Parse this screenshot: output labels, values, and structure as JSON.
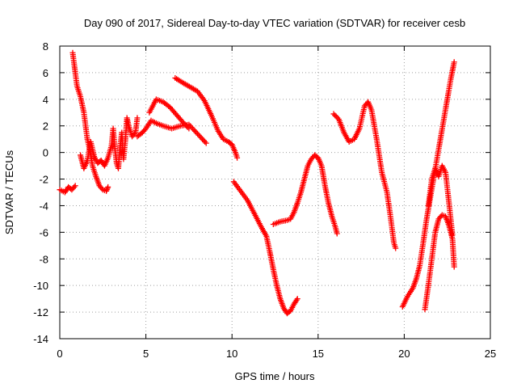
{
  "chart_data": {
    "type": "scatter",
    "title": "Day 090 of 2017, Sidereal Day-to-day VTEC variation (SDTVAR) for receiver cesb",
    "xlabel": "GPS time / hours",
    "ylabel": "SDTVAR / TECUs",
    "xlim": [
      0,
      25
    ],
    "ylim": [
      -14,
      8
    ],
    "xticks": [
      0,
      5,
      10,
      15,
      20,
      25
    ],
    "yticks": [
      -14,
      -12,
      -10,
      -8,
      -6,
      -4,
      -2,
      0,
      2,
      4,
      6,
      8
    ],
    "grid": true,
    "marker": "+",
    "colors": {
      "series": "#ff0000",
      "grid": "#a0a0a0"
    },
    "series": [
      {
        "segments": [
          [
            [
              0.0,
              -2.8
            ],
            [
              0.3,
              -3.0
            ],
            [
              0.5,
              -2.6
            ],
            [
              0.7,
              -2.8
            ],
            [
              0.9,
              -2.5
            ]
          ],
          [
            [
              0.75,
              7.5
            ],
            [
              0.85,
              6.5
            ],
            [
              1.0,
              5.0
            ],
            [
              1.2,
              4.2
            ],
            [
              1.4,
              3.0
            ],
            [
              1.6,
              1.0
            ],
            [
              1.75,
              0.2
            ],
            [
              1.9,
              -1.0
            ],
            [
              2.1,
              -1.8
            ],
            [
              2.3,
              -2.5
            ],
            [
              2.5,
              -2.8
            ],
            [
              2.7,
              -2.9
            ],
            [
              2.8,
              -2.6
            ]
          ],
          [
            [
              1.2,
              -0.2
            ],
            [
              1.4,
              -1.2
            ],
            [
              1.6,
              -0.6
            ],
            [
              1.8,
              0.8
            ],
            [
              2.0,
              -0.3
            ],
            [
              2.2,
              -0.8
            ],
            [
              2.4,
              -0.6
            ],
            [
              2.6,
              -1.0
            ],
            [
              2.8,
              -0.4
            ],
            [
              3.0,
              0.5
            ],
            [
              3.1,
              1.8
            ],
            [
              3.2,
              0.3
            ],
            [
              3.3,
              -0.8
            ],
            [
              3.4,
              -1.2
            ],
            [
              3.5,
              0.4
            ],
            [
              3.6,
              1.5
            ],
            [
              3.7,
              -0.5
            ],
            [
              3.8,
              0.8
            ],
            [
              3.9,
              2.6
            ],
            [
              4.0,
              2.0
            ],
            [
              4.2,
              1.2
            ],
            [
              4.4,
              1.5
            ],
            [
              4.5,
              2.6
            ]
          ],
          [
            [
              4.5,
              1.2
            ],
            [
              4.8,
              1.5
            ],
            [
              5.0,
              1.8
            ],
            [
              5.3,
              2.4
            ],
            [
              5.6,
              2.2
            ],
            [
              6.0,
              2.0
            ],
            [
              6.5,
              1.8
            ],
            [
              7.0,
              2.0
            ],
            [
              7.5,
              2.1
            ],
            [
              8.0,
              1.4
            ],
            [
              8.5,
              0.7
            ]
          ],
          [
            [
              5.2,
              3.0
            ],
            [
              5.6,
              4.0
            ],
            [
              6.0,
              3.8
            ],
            [
              6.4,
              3.4
            ],
            [
              6.8,
              2.8
            ],
            [
              7.2,
              2.2
            ],
            [
              7.5,
              1.8
            ]
          ],
          [
            [
              6.7,
              5.6
            ],
            [
              7.2,
              5.2
            ],
            [
              7.6,
              4.9
            ],
            [
              8.0,
              4.6
            ],
            [
              8.4,
              3.9
            ],
            [
              8.8,
              2.8
            ],
            [
              9.2,
              1.6
            ],
            [
              9.5,
              1.0
            ],
            [
              9.8,
              0.8
            ],
            [
              10.0,
              0.6
            ],
            [
              10.2,
              0.0
            ],
            [
              10.3,
              -0.4
            ]
          ],
          [
            [
              10.1,
              -2.2
            ],
            [
              10.5,
              -2.9
            ],
            [
              10.9,
              -3.6
            ],
            [
              11.3,
              -4.6
            ],
            [
              11.7,
              -5.6
            ],
            [
              12.0,
              -6.3
            ],
            [
              12.2,
              -7.5
            ],
            [
              12.4,
              -8.8
            ],
            [
              12.6,
              -10.0
            ],
            [
              12.8,
              -11.0
            ],
            [
              13.0,
              -11.7
            ],
            [
              13.2,
              -12.1
            ],
            [
              13.4,
              -11.9
            ],
            [
              13.6,
              -11.4
            ],
            [
              13.8,
              -11.0
            ]
          ],
          [
            [
              12.4,
              -5.4
            ],
            [
              12.8,
              -5.2
            ],
            [
              13.2,
              -5.1
            ],
            [
              13.4,
              -5.0
            ],
            [
              13.6,
              -4.5
            ],
            [
              13.8,
              -3.8
            ],
            [
              14.0,
              -3.0
            ],
            [
              14.2,
              -2.0
            ],
            [
              14.4,
              -1.0
            ],
            [
              14.6,
              -0.5
            ],
            [
              14.8,
              -0.2
            ],
            [
              15.0,
              -0.4
            ],
            [
              15.2,
              -1.0
            ],
            [
              15.4,
              -2.5
            ],
            [
              15.6,
              -3.8
            ],
            [
              15.8,
              -4.8
            ],
            [
              16.0,
              -5.6
            ],
            [
              16.1,
              -6.1
            ]
          ],
          [
            [
              15.9,
              2.9
            ],
            [
              16.2,
              2.5
            ],
            [
              16.5,
              1.5
            ],
            [
              16.8,
              0.8
            ],
            [
              17.1,
              1.0
            ],
            [
              17.4,
              1.8
            ],
            [
              17.7,
              3.5
            ],
            [
              17.9,
              3.8
            ],
            [
              18.1,
              3.2
            ],
            [
              18.4,
              1.0
            ],
            [
              18.7,
              -1.5
            ],
            [
              19.0,
              -3.0
            ],
            [
              19.2,
              -4.8
            ],
            [
              19.4,
              -6.8
            ],
            [
              19.5,
              -7.2
            ]
          ],
          [
            [
              19.9,
              -11.6
            ],
            [
              20.2,
              -10.8
            ],
            [
              20.5,
              -10.2
            ],
            [
              20.7,
              -9.5
            ],
            [
              20.9,
              -8.5
            ],
            [
              21.1,
              -6.8
            ],
            [
              21.3,
              -5.0
            ],
            [
              21.5,
              -3.5
            ],
            [
              21.7,
              -2.0
            ],
            [
              21.9,
              -0.5
            ],
            [
              22.1,
              1.0
            ],
            [
              22.3,
              2.5
            ],
            [
              22.5,
              4.0
            ],
            [
              22.7,
              5.5
            ],
            [
              22.9,
              6.8
            ]
          ],
          [
            [
              21.2,
              -11.8
            ],
            [
              21.4,
              -10.0
            ],
            [
              21.6,
              -8.0
            ],
            [
              21.8,
              -6.0
            ],
            [
              22.0,
              -5.0
            ],
            [
              22.2,
              -4.7
            ],
            [
              22.4,
              -4.8
            ],
            [
              22.6,
              -5.5
            ],
            [
              22.8,
              -6.5
            ],
            [
              22.9,
              -8.6
            ]
          ],
          [
            [
              21.4,
              -4.0
            ],
            [
              21.6,
              -2.0
            ],
            [
              21.8,
              -1.2
            ],
            [
              22.0,
              -1.8
            ],
            [
              22.2,
              -1.0
            ],
            [
              22.4,
              -1.5
            ],
            [
              22.6,
              -3.8
            ],
            [
              22.8,
              -6.2
            ]
          ]
        ]
      }
    ]
  }
}
